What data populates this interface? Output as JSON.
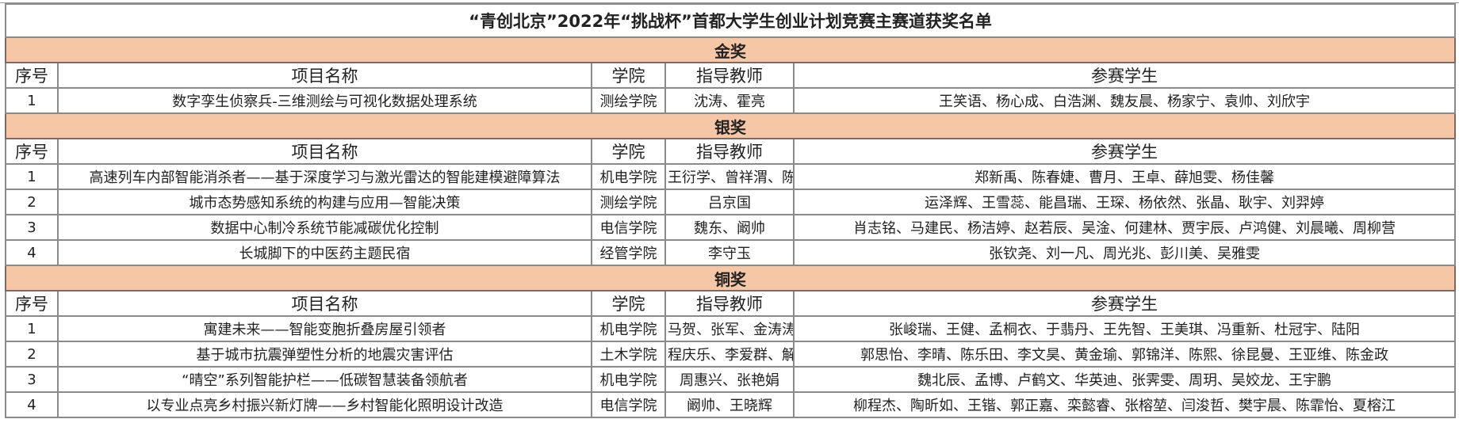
{
  "title": "“青创北京”2022年“挑战杯”首都大学生创业计划竞赛主赛道获奖名单",
  "headers": {
    "no": "序号",
    "project": "项目名称",
    "college": "学院",
    "advisor": "指导教师",
    "students": "参赛学生"
  },
  "sections": [
    {
      "name": "金奖",
      "rows": [
        {
          "no": "1",
          "project": "数字孪生侦察兵-三维测绘与可视化数据处理系统",
          "college": "测绘学院",
          "advisor": "沈涛、霍亮",
          "students": "王笑语、杨心成、白浩渊、魏友晨、杨家宁、袁帅、刘欣宇"
        }
      ]
    },
    {
      "name": "银奖",
      "rows": [
        {
          "no": "1",
          "project": "高速列车内部智能消杀者——基于深度学习与激光雷达的智能建模避障算法",
          "college": "机电学院",
          "advisor": "王衍学、曾祥渭、陈思源",
          "students": "郑新禹、陈春婕、曹月、王卓、薛旭雯、杨佳馨"
        },
        {
          "no": "2",
          "project": "城市态势感知系统的构建与应用—智能决策",
          "college": "测绘学院",
          "advisor": "吕京国",
          "students": "运泽辉、王雪蕊、能昌瑞、王琛、杨依然、张晶、耿宇、刘羿婷"
        },
        {
          "no": "3",
          "project": "数据中心制冷系统节能减碳优化控制",
          "college": "电信学院",
          "advisor": "魏东、阚帅",
          "students": "肖志铭、马建民、杨洁婷、赵若辰、吴淦、何建林、贾宇辰、卢鸿健、刘晨曦、周柳营"
        },
        {
          "no": "4",
          "project": "长城脚下的中医药主题民宿",
          "college": "经管学院",
          "advisor": "李守玉",
          "students": "张钦尧、刘一凡、周光兆、彭川美、吴雅雯"
        }
      ]
    },
    {
      "name": "铜奖",
      "rows": [
        {
          "no": "1",
          "project": "寓建未来——智能变胞折叠房屋引领者",
          "college": "机电学院",
          "advisor": "马贺、张军、金涛涛",
          "students": "张峻瑞、王健、孟桐衣、于翡丹、王先智、王美琪、冯重新、杜冠宇、陆阳"
        },
        {
          "no": "2",
          "project": "基于城市抗震弹塑性分析的地震灾害评估",
          "college": "土木学院",
          "advisor": "程庆乐、李爱群、解琳琳",
          "students": "郭思怡、李晴、陈乐田、李文昊、黄金瑜、郭锦洋、陈熙、徐昆曼、王亚维、陈金政"
        },
        {
          "no": "3",
          "project": "“晴空”系列智能护栏——低碳智慧装备领航者",
          "college": "机电学院",
          "advisor": "周惠兴、张艳娟",
          "students": "魏北辰、孟博、卢鹤文、华英迪、张霁雯、周玥、吴姣龙、王宇鹏"
        },
        {
          "no": "4",
          "project": "以专业点亮乡村振兴新灯牌——乡村智能化照明设计改造",
          "college": "电信学院",
          "advisor": "阚帅、王晓辉",
          "students": "柳程杰、陶昕如、王锴、郭正嘉、栾懿睿、张榕堃、闫浚哲、樊宇晨、陈霏怡、夏榕江"
        }
      ]
    }
  ]
}
